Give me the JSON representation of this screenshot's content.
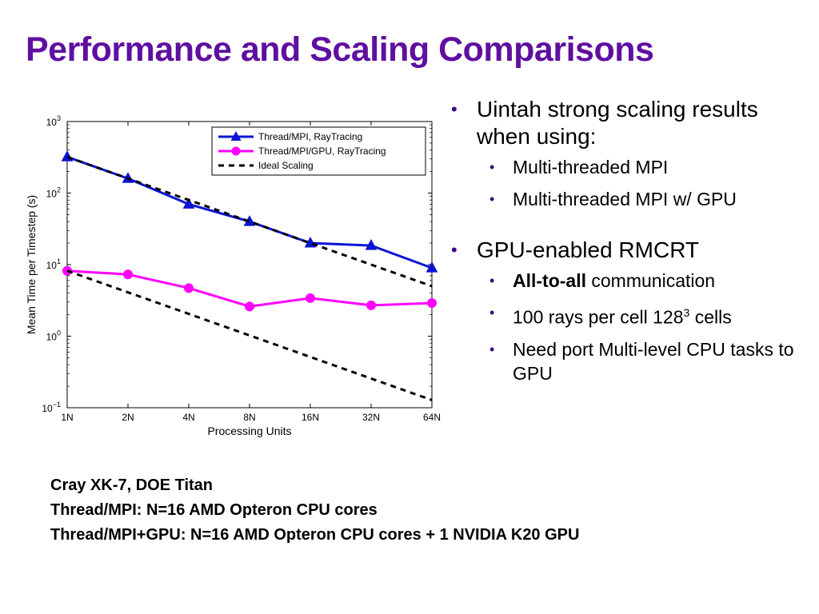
{
  "slide": {
    "title": "Performance and Scaling Comparisons"
  },
  "bullets": {
    "b1": "Uintah strong scaling results when using:",
    "b1_sub": [
      "Multi-threaded MPI",
      "Multi-threaded MPI w/ GPU"
    ],
    "b2": "GPU-enabled RMCRT",
    "b2_sub1_bold": "All-to-all",
    "b2_sub1_rest": " communication",
    "b2_sub2_pre": "100 rays per cell 128",
    "b2_sub2_sup": "3",
    "b2_sub2_post": " cells",
    "b2_sub3": "Need port Multi-level CPU tasks to GPU"
  },
  "notes": {
    "line1": "Cray XK-7,  DOE Titan",
    "line2": "Thread/MPI:  N=16 AMD Opteron CPU cores",
    "line3": "Thread/MPI+GPU:  N=16 AMD Opteron CPU  cores +  1 NVIDIA K20 GPU"
  },
  "colors": {
    "title": "#5f0fa0",
    "series_cpu": "#0a14d2",
    "series_gpu": "#ff00ff",
    "ideal": "#000000"
  },
  "chart_data": {
    "type": "line",
    "xlabel": "Processing Units",
    "ylabel": "Mean Time per Timestep (s)",
    "categories": [
      "1N",
      "2N",
      "4N",
      "8N",
      "16N",
      "32N",
      "64N"
    ],
    "y_scale": "log",
    "ylim": [
      0.1,
      1000
    ],
    "y_tick_exponents": [
      "3",
      "2",
      "1",
      "0",
      "−1"
    ],
    "legend_position": "top-right",
    "series": [
      {
        "name": "Thread/MPI, RayTracing",
        "marker": "triangle",
        "values": [
          320,
          160,
          70,
          40,
          20,
          18.5,
          9
        ]
      },
      {
        "name": "Thread/MPI/GPU, RayTracing",
        "marker": "circle",
        "values": [
          8.2,
          7.3,
          4.7,
          2.6,
          3.4,
          2.7,
          2.9
        ]
      },
      {
        "name": "Ideal Scaling",
        "style": "dashed",
        "values": [
          320,
          160,
          80,
          40,
          20,
          10,
          5
        ]
      },
      {
        "name": "Ideal Scaling",
        "style": "dashed",
        "values": [
          8.2,
          4.1,
          2.05,
          1.025,
          0.5125,
          0.256,
          0.128
        ]
      }
    ]
  }
}
